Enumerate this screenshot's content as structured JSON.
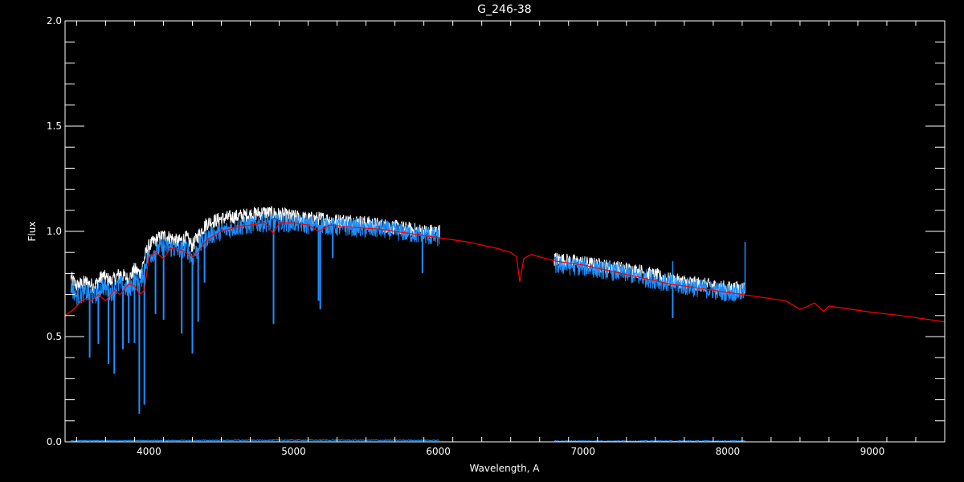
{
  "chart_data": {
    "type": "line",
    "title": "G_246-38",
    "xlabel": "Wavelength, A",
    "ylabel": "Flux",
    "xlim": [
      3420,
      9500
    ],
    "ylim": [
      0,
      2.0
    ],
    "x_ticks": [
      4000,
      5000,
      6000,
      7000,
      8000,
      9000
    ],
    "x_tick_labels": [
      "4000",
      "5000",
      "6000",
      "7000",
      "8000",
      "9000"
    ],
    "y_ticks": [
      0.0,
      0.5,
      1.0,
      1.5,
      2.0
    ],
    "y_tick_labels": [
      "0.0",
      "0.5",
      "1.0",
      "1.5",
      "2.0"
    ],
    "grid": false,
    "legend": "none",
    "colors": {
      "background": "#000000",
      "axes": "#ffffff",
      "observed_white": "#ffffff",
      "observed_blue": "#1e8fff",
      "model": "#ff0000"
    },
    "series": [
      {
        "style": "white-noisy",
        "segments": [
          {
            "x": [
              3460,
              3500,
              3560,
              3620,
              3680,
              3740,
              3800,
              3860,
              3900,
              3940,
              3980,
              4000,
              4050,
              4100,
              4150,
              4200,
              4260,
              4300,
              4340,
              4400,
              4450,
              4500,
              4600,
              4700,
              4800,
              4900,
              5000,
              5100,
              5200,
              5300,
              5400,
              5500,
              5600,
              5700,
              5800,
              5900,
              6010
            ],
            "y": [
              0.78,
              0.74,
              0.76,
              0.74,
              0.79,
              0.76,
              0.8,
              0.77,
              0.82,
              0.8,
              0.9,
              0.93,
              0.96,
              0.98,
              0.97,
              0.95,
              0.97,
              0.93,
              0.98,
              1.04,
              1.05,
              1.06,
              1.07,
              1.08,
              1.09,
              1.08,
              1.07,
              1.06,
              1.06,
              1.05,
              1.05,
              1.04,
              1.03,
              1.02,
              1.01,
              1.0,
              1.0
            ]
          },
          {
            "x": [
              6800,
              6900,
              7000,
              7100,
              7200,
              7300,
              7400,
              7500,
              7600,
              7700,
              7800,
              7900,
              8000,
              8120
            ],
            "y": [
              0.87,
              0.86,
              0.85,
              0.84,
              0.83,
              0.82,
              0.81,
              0.79,
              0.77,
              0.76,
              0.75,
              0.74,
              0.73,
              0.73
            ]
          }
        ]
      },
      {
        "style": "blue-noisy",
        "segments": [
          {
            "x": [
              3460,
              3500,
              3560,
              3620,
              3680,
              3740,
              3800,
              3860,
              3900,
              3940,
              3980,
              4000,
              4050,
              4100,
              4150,
              4200,
              4260,
              4300,
              4340,
              4400,
              4450,
              4500,
              4600,
              4700,
              4800,
              4900,
              5000,
              5100,
              5200,
              5300,
              5400,
              5500,
              5600,
              5700,
              5800,
              5900,
              6010
            ],
            "y": [
              0.74,
              0.69,
              0.71,
              0.69,
              0.74,
              0.71,
              0.75,
              0.72,
              0.77,
              0.75,
              0.86,
              0.88,
              0.91,
              0.93,
              0.92,
              0.91,
              0.92,
              0.87,
              0.92,
              0.97,
              0.99,
              1.0,
              1.02,
              1.03,
              1.04,
              1.04,
              1.04,
              1.03,
              1.03,
              1.02,
              1.02,
              1.01,
              1.01,
              1.0,
              0.99,
              0.98,
              0.97
            ]
          },
          {
            "x": [
              6800,
              6900,
              7000,
              7100,
              7200,
              7300,
              7400,
              7500,
              7600,
              7700,
              7800,
              7900,
              8000,
              8120
            ],
            "y": [
              0.84,
              0.835,
              0.83,
              0.82,
              0.81,
              0.8,
              0.78,
              0.77,
              0.75,
              0.74,
              0.73,
              0.72,
              0.71,
              0.71
            ]
          }
        ],
        "absorption_lines": [
          {
            "x": 3590,
            "depth": 0.3
          },
          {
            "x": 3650,
            "depth": 0.25
          },
          {
            "x": 3720,
            "depth": 0.35
          },
          {
            "x": 3760,
            "depth": 0.4
          },
          {
            "x": 3820,
            "depth": 0.3
          },
          {
            "x": 3860,
            "depth": 0.25
          },
          {
            "x": 3900,
            "depth": 0.3
          },
          {
            "x": 3933,
            "depth": 0.62
          },
          {
            "x": 3968,
            "depth": 0.65
          },
          {
            "x": 4045,
            "depth": 0.3
          },
          {
            "x": 4101,
            "depth": 0.35
          },
          {
            "x": 4226,
            "depth": 0.4
          },
          {
            "x": 4300,
            "depth": 0.45
          },
          {
            "x": 4340,
            "depth": 0.35
          },
          {
            "x": 4384,
            "depth": 0.2
          },
          {
            "x": 4861,
            "depth": 0.48
          },
          {
            "x": 5172,
            "depth": 0.36
          },
          {
            "x": 5184,
            "depth": 0.4
          },
          {
            "x": 5270,
            "depth": 0.15
          },
          {
            "x": 5890,
            "depth": 0.18
          },
          {
            "x": 7620,
            "depth": 0.16
          }
        ],
        "spikes": [
          {
            "x": 7620,
            "height": 0.11
          },
          {
            "x": 8120,
            "height": 0.24
          }
        ]
      },
      {
        "style": "model-red",
        "x": [
          3420,
          3440,
          3480,
          3520,
          3560,
          3600,
          3650,
          3700,
          3760,
          3800,
          3860,
          3900,
          3935,
          3968,
          4000,
          4050,
          4101,
          4150,
          4226,
          4300,
          4340,
          4400,
          4500,
          4600,
          4700,
          4800,
          4861,
          4900,
          5000,
          5100,
          5172,
          5250,
          5400,
          5600,
          5800,
          6000,
          6200,
          6400,
          6500,
          6540,
          6563,
          6590,
          6640,
          6800,
          7000,
          7200,
          7400,
          7600,
          7800,
          8000,
          8200,
          8400,
          8498,
          8542,
          8600,
          8662,
          8700,
          8800,
          9000,
          9200,
          9400,
          9500
        ],
        "y": [
          0.6,
          0.61,
          0.63,
          0.66,
          0.68,
          0.67,
          0.7,
          0.67,
          0.72,
          0.7,
          0.75,
          0.74,
          0.7,
          0.72,
          0.88,
          0.9,
          0.87,
          0.92,
          0.91,
          0.88,
          0.9,
          0.96,
          1.0,
          1.02,
          1.03,
          1.04,
          0.99,
          1.04,
          1.04,
          1.03,
          1.0,
          1.03,
          1.02,
          1.01,
          0.99,
          0.97,
          0.95,
          0.92,
          0.9,
          0.88,
          0.76,
          0.87,
          0.89,
          0.86,
          0.84,
          0.81,
          0.78,
          0.75,
          0.73,
          0.71,
          0.69,
          0.67,
          0.63,
          0.64,
          0.66,
          0.62,
          0.645,
          0.635,
          0.615,
          0.6,
          0.58,
          0.57
        ]
      },
      {
        "style": "blue-error",
        "segments": [
          {
            "x": [
              3460,
              4000,
              5000,
              6010
            ],
            "y": [
              0.005,
              0.006,
              0.008,
              0.007
            ]
          },
          {
            "x": [
              6800,
              7600,
              8120
            ],
            "y": [
              0.004,
              0.004,
              0.004
            ]
          }
        ]
      }
    ]
  }
}
